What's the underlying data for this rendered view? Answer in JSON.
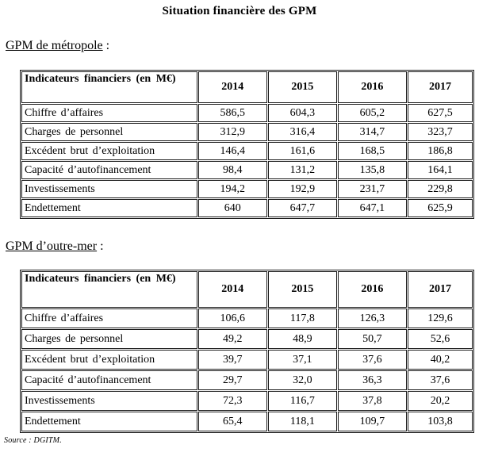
{
  "page": {
    "title": "Situation financière des GPM",
    "source_note": "Source : DGITM."
  },
  "sections": [
    {
      "heading": "GPM de métropole",
      "heading_suffix": " :",
      "table": {
        "header_label": "Indicateurs financiers (en M€)",
        "years": [
          "2014",
          "2015",
          "2016",
          "2017"
        ],
        "rows": [
          {
            "label": "Chiffre d’affaires",
            "values": [
              "586,5",
              "604,3",
              "605,2",
              "627,5"
            ]
          },
          {
            "label": "Charges de personnel",
            "values": [
              "312,9",
              "316,4",
              "314,7",
              "323,7"
            ]
          },
          {
            "label": "Excédent brut d’exploitation",
            "values": [
              "146,4",
              "161,6",
              "168,5",
              "186,8"
            ]
          },
          {
            "label": "Capacité d’autofinancement",
            "values": [
              "98,4",
              "131,2",
              "135,8",
              "164,1"
            ]
          },
          {
            "label": "Investissements",
            "values": [
              "194,2",
              "192,9",
              "231,7",
              "229,8"
            ]
          },
          {
            "label": "Endettement",
            "values": [
              "640",
              "647,7",
              "647,1",
              "625,9"
            ]
          }
        ]
      }
    },
    {
      "heading": "GPM d’outre-mer",
      "heading_suffix": " :",
      "table": {
        "header_label": "Indicateurs financiers (en M€)",
        "years": [
          "2014",
          "2015",
          "2016",
          "2017"
        ],
        "rows": [
          {
            "label": "Chiffre d’affaires",
            "values": [
              "106,6",
              "117,8",
              "126,3",
              "129,6"
            ]
          },
          {
            "label": "Charges de personnel",
            "values": [
              "49,2",
              "48,9",
              "50,7",
              "52,6"
            ]
          },
          {
            "label": "Excédent brut d’exploitation",
            "values": [
              "39,7",
              "37,1",
              "37,6",
              "40,2"
            ]
          },
          {
            "label": "Capacité d’autofinancement",
            "values": [
              "29,7",
              "32,0",
              "36,3",
              "37,6"
            ]
          },
          {
            "label": "Investissements",
            "values": [
              "72,3",
              "116,7",
              "37,8",
              "20,2"
            ]
          },
          {
            "label": "Endettement",
            "values": [
              "65,4",
              "118,1",
              "109,7",
              "103,8"
            ]
          }
        ]
      }
    }
  ]
}
